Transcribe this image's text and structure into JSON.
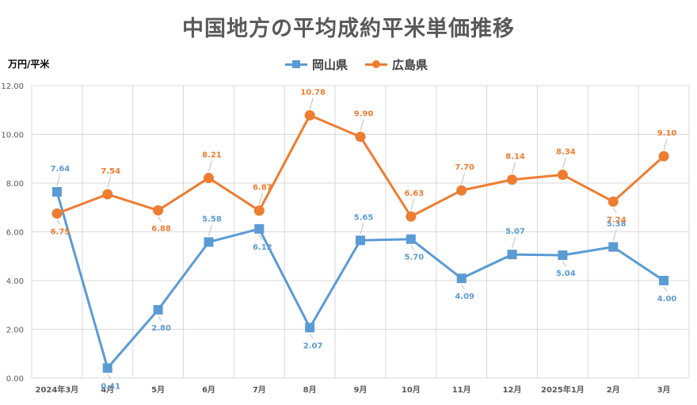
{
  "title": "中国地方の平均成約平米単価推移",
  "y_unit": "万円/平米",
  "colors": {
    "okayama": "#5b9bd5",
    "hiroshima": "#ed7d31",
    "grid": "#d9d9d9",
    "axis_text": "#595959"
  },
  "chart_data": {
    "type": "line",
    "categories": [
      "2024年3月",
      "4月",
      "5月",
      "6月",
      "7月",
      "8月",
      "9月",
      "10月",
      "11月",
      "12月",
      "2025年1月",
      "2月",
      "3月"
    ],
    "ylabel": "万円/平米",
    "ylim": [
      0,
      12
    ],
    "yticks": [
      "0.00",
      "2.00",
      "4.00",
      "6.00",
      "8.00",
      "10.00",
      "12.00"
    ],
    "grid": true,
    "legend_position": "top",
    "series": [
      {
        "name": "岡山県",
        "marker": "square",
        "color": "#5b9bd5",
        "values": [
          7.64,
          0.41,
          2.8,
          5.58,
          6.12,
          2.07,
          5.65,
          5.7,
          4.09,
          5.07,
          5.04,
          5.38,
          4.0
        ],
        "labels": [
          "7.64",
          "0.41",
          "2.80",
          "5.58",
          "6.12",
          "2.07",
          "5.65",
          "5.70",
          "4.09",
          "5.07",
          "5.04",
          "5.38",
          "4.00"
        ]
      },
      {
        "name": "広島県",
        "marker": "circle",
        "color": "#ed7d31",
        "values": [
          6.75,
          7.54,
          6.88,
          8.21,
          6.87,
          10.78,
          9.9,
          6.63,
          7.7,
          8.14,
          8.34,
          7.24,
          9.1
        ],
        "labels": [
          "6.75",
          "7.54",
          "6.88",
          "8.21",
          "6.87",
          "10.78",
          "9.90",
          "6.63",
          "7.70",
          "8.14",
          "8.34",
          "7.24",
          "9.10"
        ]
      }
    ]
  }
}
